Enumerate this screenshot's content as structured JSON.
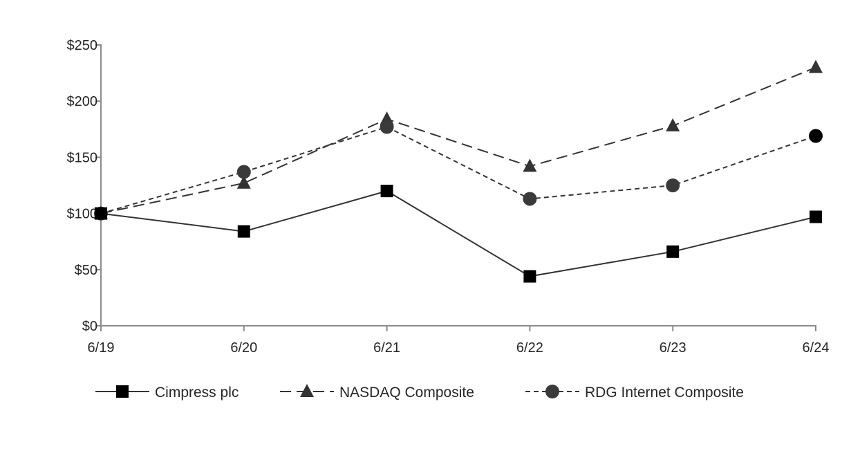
{
  "chart_data": {
    "type": "line",
    "title": "",
    "xlabel": "",
    "ylabel": "",
    "categories": [
      "6/19",
      "6/20",
      "6/21",
      "6/22",
      "6/23",
      "6/24"
    ],
    "ylim": [
      0,
      250
    ],
    "yticks": [
      0,
      50,
      100,
      150,
      200,
      250
    ],
    "ytick_labels": [
      "$0",
      "$50",
      "$100",
      "$150",
      "$200",
      "$250"
    ],
    "grid": false,
    "legend_position": "bottom",
    "series": [
      {
        "name": "Cimpress plc",
        "marker": "square",
        "dash": "solid",
        "values": [
          100,
          84,
          120,
          44,
          66,
          97
        ],
        "color": "#000000",
        "line_color": "#333333"
      },
      {
        "name": "NASDAQ Composite",
        "marker": "triangle",
        "dash": "long-dash",
        "values": [
          100,
          127,
          184,
          142,
          178,
          230
        ],
        "color": "#333333",
        "line_color": "#333333"
      },
      {
        "name": "RDG Internet Composite",
        "marker": "circle",
        "dash": "short-dash",
        "values": [
          100,
          137,
          177,
          113,
          125,
          169
        ],
        "color": "#3a3a3a",
        "line_color": "#333333"
      }
    ]
  }
}
